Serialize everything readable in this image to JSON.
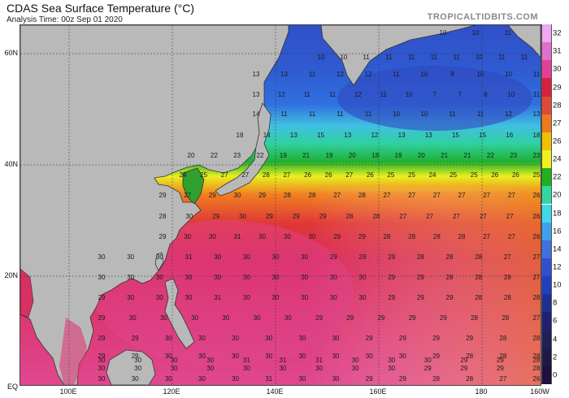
{
  "header": {
    "title": "CDAS Sea Surface Temperature (°C)",
    "subtitle": "Analysis Time: 00z Sep 01 2020",
    "brand": "TROPICALTIDBITS.COM"
  },
  "axes": {
    "lat_labels": [
      "60N",
      "40N",
      "20N",
      "EQ"
    ],
    "lon_labels": [
      "100E",
      "120E",
      "140E",
      "160E",
      "180",
      "160W"
    ]
  },
  "colorbar": {
    "levels": [
      "32",
      "31",
      "30",
      "29",
      "28",
      "27",
      "26",
      "24",
      "22",
      "20",
      "18",
      "16",
      "14",
      "12",
      "10",
      "8",
      "6",
      "4",
      "2",
      "0"
    ],
    "colors": [
      "#f0a8f0",
      "#e070d0",
      "#e0409a",
      "#d8203c",
      "#e0483a",
      "#f07820",
      "#f0c000",
      "#f0f020",
      "#20b020",
      "#30d8a0",
      "#40d8e8",
      "#40a0f0",
      "#4070e0",
      "#3050d0",
      "#2040c0",
      "#203090",
      "#202070",
      "#202058",
      "#201848",
      "#201040"
    ]
  },
  "map_values": {
    "rows": [
      {
        "label_row": "60N-a",
        "values": [
          "10",
          "10",
          "11"
        ]
      },
      {
        "label_row": "58N",
        "values": [
          "10",
          "10",
          "11",
          "11",
          "11",
          "11",
          "11",
          "10",
          "11",
          "11"
        ]
      },
      {
        "label_row": "55N",
        "values": [
          "13",
          "13",
          "11",
          "12",
          "12",
          "11",
          "10",
          "9",
          "10",
          "10",
          "11"
        ]
      },
      {
        "label_row": "52N",
        "values": [
          "13",
          "12",
          "11",
          "11",
          "12",
          "11",
          "10",
          "7",
          "7",
          "8",
          "10",
          "11"
        ]
      },
      {
        "label_row": "49N",
        "values": [
          "14",
          "11",
          "11",
          "11",
          "11",
          "10",
          "10",
          "11",
          "11",
          "12",
          "13"
        ]
      },
      {
        "label_row": "46N",
        "values": [
          "18",
          "14",
          "13",
          "15",
          "13",
          "12",
          "13",
          "13",
          "15",
          "15",
          "16",
          "18"
        ]
      },
      {
        "label_row": "41N",
        "values": [
          "20",
          "22",
          "23",
          "22",
          "19",
          "21",
          "19",
          "20",
          "18",
          "19",
          "20",
          "21",
          "21",
          "22",
          "23",
          "23"
        ]
      },
      {
        "label_row": "38N",
        "values": [
          "24",
          "25",
          "27",
          "27",
          "28",
          "27",
          "26",
          "26",
          "27",
          "26",
          "25",
          "25",
          "24",
          "25",
          "25",
          "26",
          "26",
          "25"
        ]
      },
      {
        "label_row": "35N",
        "values": [
          "29",
          "27",
          "29",
          "30",
          "29",
          "28",
          "28",
          "27",
          "28",
          "27",
          "27",
          "27",
          "27",
          "27",
          "27",
          "26"
        ]
      },
      {
        "label_row": "32N",
        "values": [
          "28",
          "30",
          "29",
          "30",
          "29",
          "29",
          "29",
          "28",
          "28",
          "27",
          "27",
          "27",
          "27",
          "27",
          "26"
        ]
      },
      {
        "label_row": "29N",
        "values": [
          "29",
          "30",
          "30",
          "31",
          "30",
          "30",
          "30",
          "29",
          "29",
          "28",
          "28",
          "28",
          "28",
          "27",
          "27",
          "26"
        ]
      },
      {
        "label_row": "26N",
        "values": [
          "30",
          "30",
          "30",
          "31",
          "30",
          "30",
          "30",
          "30",
          "29",
          "29",
          "29",
          "28",
          "28",
          "28",
          "27",
          "27"
        ]
      },
      {
        "label_row": "23N",
        "values": [
          "30",
          "30",
          "30",
          "30",
          "30",
          "30",
          "30",
          "30",
          "30",
          "30",
          "29",
          "29",
          "28",
          "28",
          "28",
          "27"
        ]
      },
      {
        "label_row": "20N",
        "values": [
          "29",
          "30",
          "30",
          "30",
          "31",
          "30",
          "30",
          "30",
          "30",
          "30",
          "29",
          "29",
          "29",
          "28",
          "28",
          "28"
        ]
      },
      {
        "label_row": "17N",
        "values": [
          "29",
          "30",
          "30",
          "30",
          "30",
          "30",
          "30",
          "29",
          "29",
          "29",
          "29",
          "29",
          "28",
          "28",
          "27"
        ]
      },
      {
        "label_row": "14N",
        "values": [
          "29",
          "29",
          "30",
          "30",
          "30",
          "30",
          "30",
          "30",
          "29",
          "29",
          "29",
          "29",
          "28",
          "28"
        ]
      },
      {
        "label_row": "11N",
        "values": [
          "29",
          "29",
          "30",
          "30",
          "30",
          "30",
          "30",
          "30",
          "30",
          "30",
          "29",
          "28",
          "28",
          "28"
        ]
      },
      {
        "label_row": "8N",
        "values": [
          "30",
          "30",
          "30",
          "30",
          "31",
          "31",
          "31",
          "30",
          "30",
          "30",
          "29",
          "29",
          "28"
        ]
      },
      {
        "label_row": "5N",
        "values": [
          "30",
          "30",
          "30",
          "30",
          "30",
          "30",
          "30",
          "30",
          "30",
          "29",
          "29",
          "29",
          "28"
        ]
      },
      {
        "label_row": "2N",
        "values": [
          "30",
          "30",
          "30",
          "30",
          "30",
          "31",
          "30",
          "30",
          "29",
          "29",
          "28",
          "28",
          "27",
          "26"
        ]
      }
    ]
  }
}
